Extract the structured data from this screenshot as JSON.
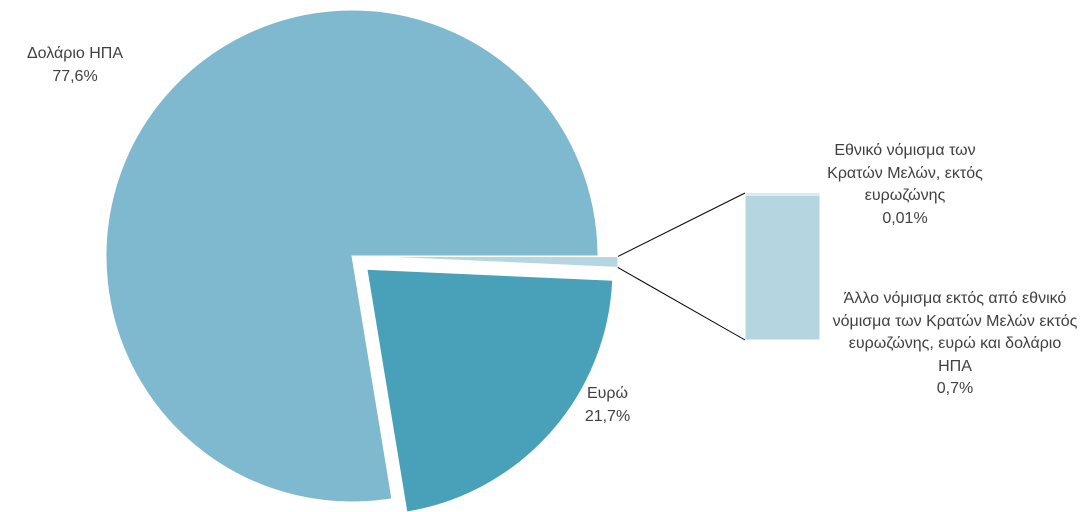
{
  "chart_data": {
    "type": "pie",
    "categories": [
      "Δολάριο ΗΠΑ",
      "Ευρώ",
      "Εθνικό νόμισμα των Κρατών Μελών,  εκτός ευρωζώνης",
      "Άλλο νόμισμα εκτός από εθνικό νόμισμα των Κρατών Μελών εκτός ευρωζώνης, ευρώ και δολάριο ΗΠΑ"
    ],
    "values": [
      77.6,
      21.7,
      0.01,
      0.7
    ],
    "value_labels": [
      "77,6%",
      "21,7%",
      "0,01%",
      "0,7%"
    ],
    "colors": [
      "#7fb9cf",
      "#48a1b8",
      "#b5d5e1",
      "#b5d5e1"
    ]
  }
}
